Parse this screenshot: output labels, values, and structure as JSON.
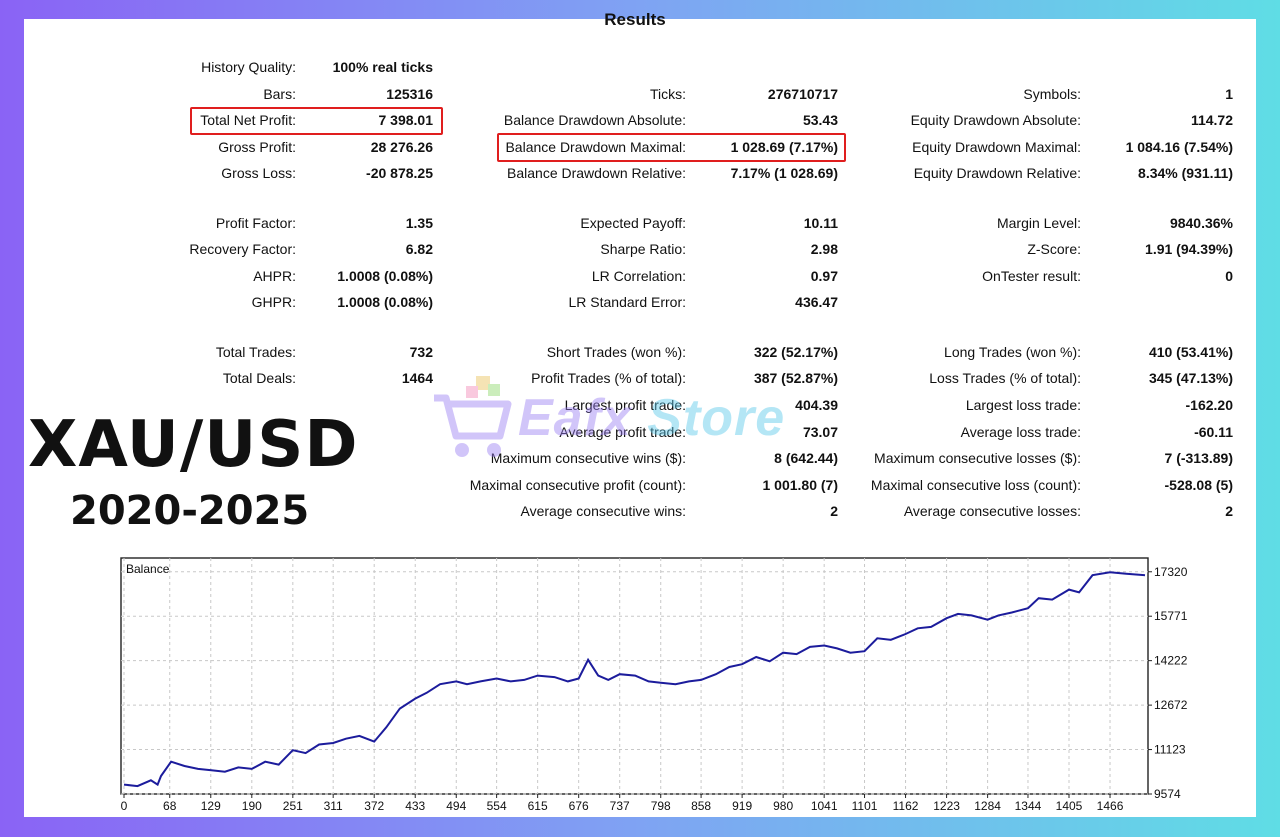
{
  "title": "Results",
  "overlay": {
    "symbol": "XAU/USD",
    "years": "2020-2025"
  },
  "watermark": {
    "text_a": "Eafx",
    "text_b": "Store"
  },
  "colors": {
    "highlight": "#e01e1e",
    "balance_line": "#1c1c9c",
    "grid": "#c8c8c8"
  },
  "rows": [
    {
      "label": "History Quality:",
      "value": "100% real ticks"
    },
    {
      "label": "Bars:",
      "value": "125316"
    },
    {
      "label": "Ticks:",
      "value": "276710717"
    },
    {
      "label": "Symbols:",
      "value": "1"
    },
    {
      "label": "Total Net Profit:",
      "value": "7 398.01"
    },
    {
      "label": "Balance Drawdown Absolute:",
      "value": "53.43"
    },
    {
      "label": "Equity Drawdown Absolute:",
      "value": "114.72"
    },
    {
      "label": "Gross Profit:",
      "value": "28 276.26"
    },
    {
      "label": "Balance Drawdown Maximal:",
      "value": "1 028.69 (7.17%)"
    },
    {
      "label": "Equity Drawdown Maximal:",
      "value": "1 084.16 (7.54%)"
    },
    {
      "label": "Gross Loss:",
      "value": "-20 878.25"
    },
    {
      "label": "Balance Drawdown Relative:",
      "value": "7.17% (1 028.69)"
    },
    {
      "label": "Equity Drawdown Relative:",
      "value": "8.34% (931.11)"
    },
    {
      "label": "Profit Factor:",
      "value": "1.35"
    },
    {
      "label": "Expected Payoff:",
      "value": "10.11"
    },
    {
      "label": "Margin Level:",
      "value": "9840.36%"
    },
    {
      "label": "Recovery Factor:",
      "value": "6.82"
    },
    {
      "label": "Sharpe Ratio:",
      "value": "2.98"
    },
    {
      "label": "Z-Score:",
      "value": "1.91 (94.39%)"
    },
    {
      "label": "AHPR:",
      "value": "1.0008 (0.08%)"
    },
    {
      "label": "LR Correlation:",
      "value": "0.97"
    },
    {
      "label": "OnTester result:",
      "value": "0"
    },
    {
      "label": "GHPR:",
      "value": "1.0008 (0.08%)"
    },
    {
      "label": "LR Standard Error:",
      "value": "436.47"
    },
    {
      "label": "Total Trades:",
      "value": "732"
    },
    {
      "label": "Short Trades (won %):",
      "value": "322 (52.17%)"
    },
    {
      "label": "Long Trades (won %):",
      "value": "410 (53.41%)"
    },
    {
      "label": "Total Deals:",
      "value": "1464"
    },
    {
      "label": "Profit Trades (% of total):",
      "value": "387 (52.87%)"
    },
    {
      "label": "Loss Trades (% of total):",
      "value": "345 (47.13%)"
    },
    {
      "label": "Largest profit trade:",
      "value": "404.39"
    },
    {
      "label": "Largest loss trade:",
      "value": "-162.20"
    },
    {
      "label": "Average profit trade:",
      "value": "73.07"
    },
    {
      "label": "Average loss trade:",
      "value": "-60.11"
    },
    {
      "label": "Maximum consecutive wins ($):",
      "value": "8 (642.44)"
    },
    {
      "label": "Maximum consecutive losses ($):",
      "value": "7 (-313.89)"
    },
    {
      "label": "Maximal consecutive profit (count):",
      "value": "1 001.80 (7)"
    },
    {
      "label": "Maximal consecutive loss (count):",
      "value": "-528.08 (5)"
    },
    {
      "label": "Average consecutive wins:",
      "value": "2"
    },
    {
      "label": "Average consecutive losses:",
      "value": "2"
    }
  ],
  "chart_data": {
    "type": "line",
    "title": "Balance",
    "xlabel": "",
    "ylabel": "",
    "x_ticks": [
      0,
      68,
      129,
      190,
      251,
      311,
      372,
      433,
      494,
      554,
      615,
      676,
      737,
      798,
      858,
      919,
      980,
      1041,
      1101,
      1162,
      1223,
      1284,
      1344,
      1405,
      1466
    ],
    "y_ticks": [
      9574,
      11123,
      12672,
      14222,
      15771,
      17320
    ],
    "xlim": [
      0,
      1518
    ],
    "ylim": [
      9574,
      17800
    ],
    "grid": true,
    "series": [
      {
        "x": [
          0,
          20,
          40,
          50,
          55,
          70,
          90,
          110,
          130,
          150,
          170,
          190,
          210,
          230,
          251,
          270,
          290,
          311,
          330,
          350,
          372,
          390,
          410,
          433,
          450,
          470,
          494,
          510,
          530,
          554,
          575,
          595,
          615,
          640,
          660,
          676,
          690,
          705,
          720,
          737,
          760,
          780,
          798,
          820,
          840,
          858,
          880,
          900,
          919,
          940,
          960,
          980,
          1000,
          1020,
          1041,
          1060,
          1080,
          1101,
          1120,
          1140,
          1162,
          1180,
          1200,
          1223,
          1240,
          1260,
          1284,
          1300,
          1320,
          1344,
          1360,
          1380,
          1405,
          1420,
          1440,
          1466,
          1490,
          1518
        ],
        "y": [
          9900,
          9850,
          10050,
          9900,
          10200,
          10700,
          10550,
          10450,
          10400,
          10350,
          10500,
          10450,
          10700,
          10600,
          11100,
          11000,
          11300,
          11350,
          11500,
          11600,
          11400,
          11900,
          12550,
          12900,
          13100,
          13400,
          13500,
          13400,
          13500,
          13600,
          13500,
          13550,
          13700,
          13650,
          13500,
          13600,
          14250,
          13700,
          13550,
          13750,
          13700,
          13500,
          13450,
          13400,
          13500,
          13550,
          13750,
          14000,
          14100,
          14350,
          14200,
          14500,
          14450,
          14700,
          14750,
          14650,
          14500,
          14550,
          15000,
          14950,
          15150,
          15350,
          15400,
          15700,
          15850,
          15800,
          15650,
          15800,
          15900,
          16050,
          16400,
          16350,
          16700,
          16600,
          17200,
          17300,
          17250,
          17200
        ]
      }
    ]
  }
}
